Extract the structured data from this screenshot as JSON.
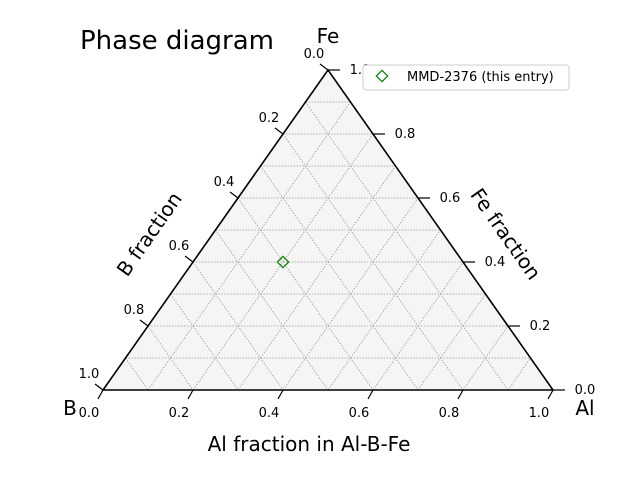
{
  "chart_data": {
    "type": "scatter",
    "projection": "ternary",
    "title": "Phase diagram",
    "vertices": {
      "top": "Fe",
      "left": "B",
      "right": "Al"
    },
    "axes": {
      "bottom": {
        "label": "Al fraction in Al-B-Fe",
        "ticks": [
          "0.0",
          "0.2",
          "0.4",
          "0.6",
          "0.8",
          "1.0"
        ]
      },
      "left": {
        "label": "B fraction",
        "ticks": [
          "0.0",
          "0.2",
          "0.4",
          "0.6",
          "0.8",
          "1.0"
        ]
      },
      "right": {
        "label": "Fe fraction",
        "ticks": [
          "0.0",
          "0.2",
          "0.4",
          "0.6",
          "0.8",
          "1.0"
        ]
      }
    },
    "grid": true,
    "grid_step": 0.1,
    "legend_position": "top-right",
    "series": [
      {
        "name": "MMD-2376 (this entry)",
        "marker": "diamond-open",
        "color": "#008000",
        "points": [
          {
            "Al": 0.2,
            "B": 0.4,
            "Fe": 0.4
          }
        ]
      }
    ],
    "colors": {
      "background": "#f5f5f5",
      "grid": "#999999",
      "axis": "#000000"
    }
  }
}
